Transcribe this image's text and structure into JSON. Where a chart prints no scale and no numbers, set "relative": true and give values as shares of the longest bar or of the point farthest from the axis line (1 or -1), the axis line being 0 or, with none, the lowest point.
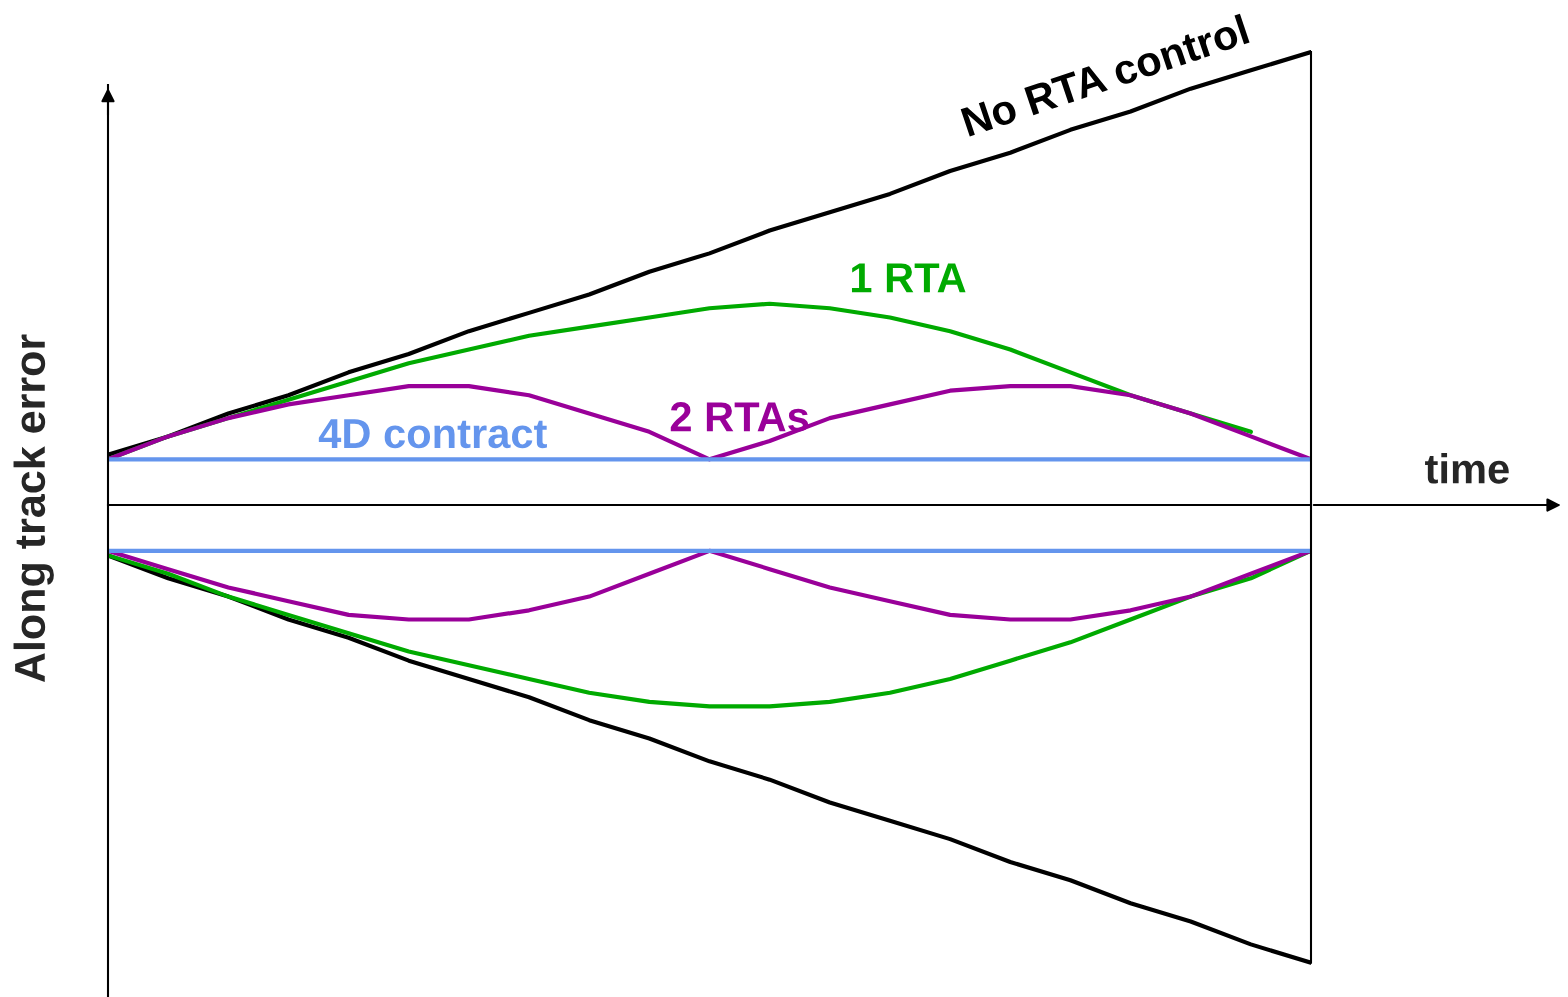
{
  "chart_data": {
    "type": "line",
    "relative": true,
    "xlabel": "time",
    "ylabel": "Along track error",
    "legend": false,
    "categories": [
      null,
      null,
      null,
      null,
      null,
      null,
      null,
      null,
      null,
      null,
      null,
      null,
      null,
      null,
      null,
      null,
      null,
      null,
      null,
      null,
      null
    ],
    "series": [
      {
        "name": "No RTA control",
        "color": "#000000",
        "values": [
          0.11,
          0.15,
          0.2,
          0.24,
          0.29,
          0.33,
          0.38,
          0.42,
          0.46,
          0.51,
          0.55,
          0.6,
          0.64,
          0.68,
          0.73,
          0.77,
          0.82,
          0.86,
          0.91,
          0.95,
          0.99
        ]
      },
      {
        "color": "#000000",
        "values": [
          -0.11,
          -0.16,
          -0.2,
          -0.25,
          -0.29,
          -0.34,
          -0.38,
          -0.42,
          -0.47,
          -0.51,
          -0.56,
          -0.6,
          -0.65,
          -0.69,
          -0.73,
          -0.78,
          -0.82,
          -0.87,
          -0.91,
          -0.96,
          -1
        ]
      },
      {
        "name": "1 RTA",
        "color": "#00aa00",
        "values": [
          0.1,
          0.15,
          0.19,
          0.23,
          0.27,
          0.31,
          0.34,
          0.37,
          0.39,
          0.41,
          0.43,
          0.44,
          0.43,
          0.41,
          0.38,
          0.34,
          0.29,
          0.24,
          0.2,
          0.16,
          null
        ]
      },
      {
        "color": "#00aa00",
        "values": [
          -0.11,
          -0.15,
          -0.2,
          -0.24,
          -0.28,
          -0.32,
          -0.35,
          -0.38,
          -0.41,
          -0.43,
          -0.44,
          -0.44,
          -0.43,
          -0.41,
          -0.38,
          -0.34,
          -0.3,
          -0.25,
          -0.2,
          -0.16,
          -0.1
        ]
      },
      {
        "name": "2 RTAs",
        "color": "#990099",
        "values": [
          0.1,
          0.15,
          0.19,
          0.22,
          0.24,
          0.26,
          0.26,
          0.24,
          0.2,
          0.16,
          0.1,
          0.14,
          0.19,
          0.22,
          0.25,
          0.26,
          0.26,
          0.24,
          0.2,
          0.15,
          0.1
        ]
      },
      {
        "color": "#990099",
        "values": [
          -0.1,
          -0.14,
          -0.18,
          -0.21,
          -0.24,
          -0.25,
          -0.25,
          -0.23,
          -0.2,
          -0.15,
          -0.1,
          -0.14,
          -0.18,
          -0.21,
          -0.24,
          -0.25,
          -0.25,
          -0.23,
          -0.2,
          -0.15,
          -0.1
        ]
      },
      {
        "name": "4D contract",
        "color": "#6495ed",
        "values": [
          0.1,
          0.1,
          0.1,
          0.1,
          0.1,
          0.1,
          0.1,
          0.1,
          0.1,
          0.1,
          0.1,
          0.1,
          0.1,
          0.1,
          0.1,
          0.1,
          0.1,
          0.1,
          0.1,
          0.1,
          0.1
        ]
      },
      {
        "color": "#6495ed",
        "values": [
          -0.1,
          -0.1,
          -0.1,
          -0.1,
          -0.1,
          -0.1,
          -0.1,
          -0.1,
          -0.1,
          -0.1,
          -0.1,
          -0.1,
          -0.1,
          -0.1,
          -0.1,
          -0.1,
          -0.1,
          -0.1,
          -0.1,
          -0.1,
          -0.1
        ]
      }
    ]
  }
}
